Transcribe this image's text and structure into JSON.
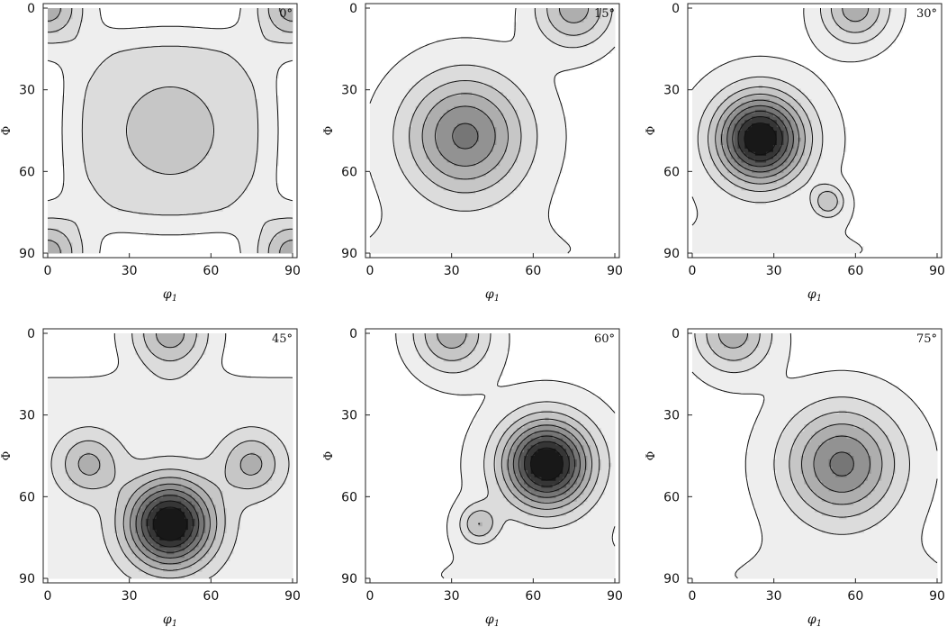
{
  "figure": {
    "shading": [
      "#ffffff",
      "#eeeeee",
      "#dcdcdc",
      "#c6c6c6",
      "#aeaeae",
      "#929292",
      "#767676",
      "#575757",
      "#363636",
      "#181818"
    ]
  },
  "chart_data": [
    {
      "type": "contour",
      "panel_label": "0°",
      "xlabel": "φ1",
      "ylabel": "Φ",
      "xlim": [
        0,
        90
      ],
      "ylim": [
        0,
        90
      ],
      "y_inverted": true,
      "xticks": [
        "0",
        "30",
        "60",
        "90"
      ],
      "yticks": [
        "0",
        "30",
        "60",
        "90"
      ],
      "peaks": [
        {
          "phi1": 45,
          "Phi": 45,
          "level": 2
        },
        {
          "phi1": 0,
          "Phi": 0,
          "level": 4
        },
        {
          "phi1": 90,
          "Phi": 0,
          "level": 4
        },
        {
          "phi1": 0,
          "Phi": 90,
          "level": 4
        },
        {
          "phi1": 90,
          "Phi": 90,
          "level": 4
        }
      ]
    },
    {
      "type": "contour",
      "panel_label": "15°",
      "xlabel": "φ1",
      "ylabel": "Φ",
      "xlim": [
        0,
        90
      ],
      "ylim": [
        0,
        90
      ],
      "y_inverted": true,
      "xticks": [
        "0",
        "30",
        "60",
        "90"
      ],
      "yticks": [
        "0",
        "30",
        "60",
        "90"
      ],
      "peaks": [
        {
          "phi1": 35,
          "Phi": 47,
          "level": 5
        },
        {
          "phi1": 75,
          "Phi": 0,
          "level": 4
        }
      ]
    },
    {
      "type": "contour",
      "panel_label": "30°",
      "xlabel": "φ1",
      "ylabel": "Φ",
      "xlim": [
        0,
        90
      ],
      "ylim": [
        0,
        90
      ],
      "y_inverted": true,
      "xticks": [
        "0",
        "30",
        "60",
        "90"
      ],
      "yticks": [
        "0",
        "30",
        "60",
        "90"
      ],
      "peaks": [
        {
          "phi1": 25,
          "Phi": 48,
          "level": 9
        },
        {
          "phi1": 60,
          "Phi": 0,
          "level": 4
        },
        {
          "phi1": 50,
          "Phi": 71,
          "level": 3
        }
      ]
    },
    {
      "type": "contour",
      "panel_label": "45°",
      "xlabel": "φ1",
      "ylabel": "Φ",
      "xlim": [
        0,
        90
      ],
      "ylim": [
        0,
        90
      ],
      "y_inverted": true,
      "xticks": [
        "0",
        "30",
        "60",
        "90"
      ],
      "yticks": [
        "0",
        "30",
        "60",
        "90"
      ],
      "peaks": [
        {
          "phi1": 45,
          "Phi": 70,
          "level": 9
        },
        {
          "phi1": 45,
          "Phi": 0,
          "level": 4
        },
        {
          "phi1": 15,
          "Phi": 48,
          "level": 3
        },
        {
          "phi1": 75,
          "Phi": 48,
          "level": 3
        }
      ]
    },
    {
      "type": "contour",
      "panel_label": "60°",
      "xlabel": "φ1",
      "ylabel": "Φ",
      "xlim": [
        0,
        90
      ],
      "ylim": [
        0,
        90
      ],
      "y_inverted": true,
      "xticks": [
        "0",
        "30",
        "60",
        "90"
      ],
      "yticks": [
        "0",
        "30",
        "60",
        "90"
      ],
      "peaks": [
        {
          "phi1": 65,
          "Phi": 48,
          "level": 9
        },
        {
          "phi1": 30,
          "Phi": 0,
          "level": 4
        },
        {
          "phi1": 40,
          "Phi": 70,
          "level": 3
        }
      ]
    },
    {
      "type": "contour",
      "panel_label": "75°",
      "xlabel": "φ1",
      "ylabel": "Φ",
      "xlim": [
        0,
        90
      ],
      "ylim": [
        0,
        90
      ],
      "y_inverted": true,
      "xticks": [
        "0",
        "30",
        "60",
        "90"
      ],
      "yticks": [
        "0",
        "30",
        "60",
        "90"
      ],
      "peaks": [
        {
          "phi1": 55,
          "Phi": 48,
          "level": 5
        },
        {
          "phi1": 15,
          "Phi": 0,
          "level": 4
        }
      ]
    }
  ]
}
